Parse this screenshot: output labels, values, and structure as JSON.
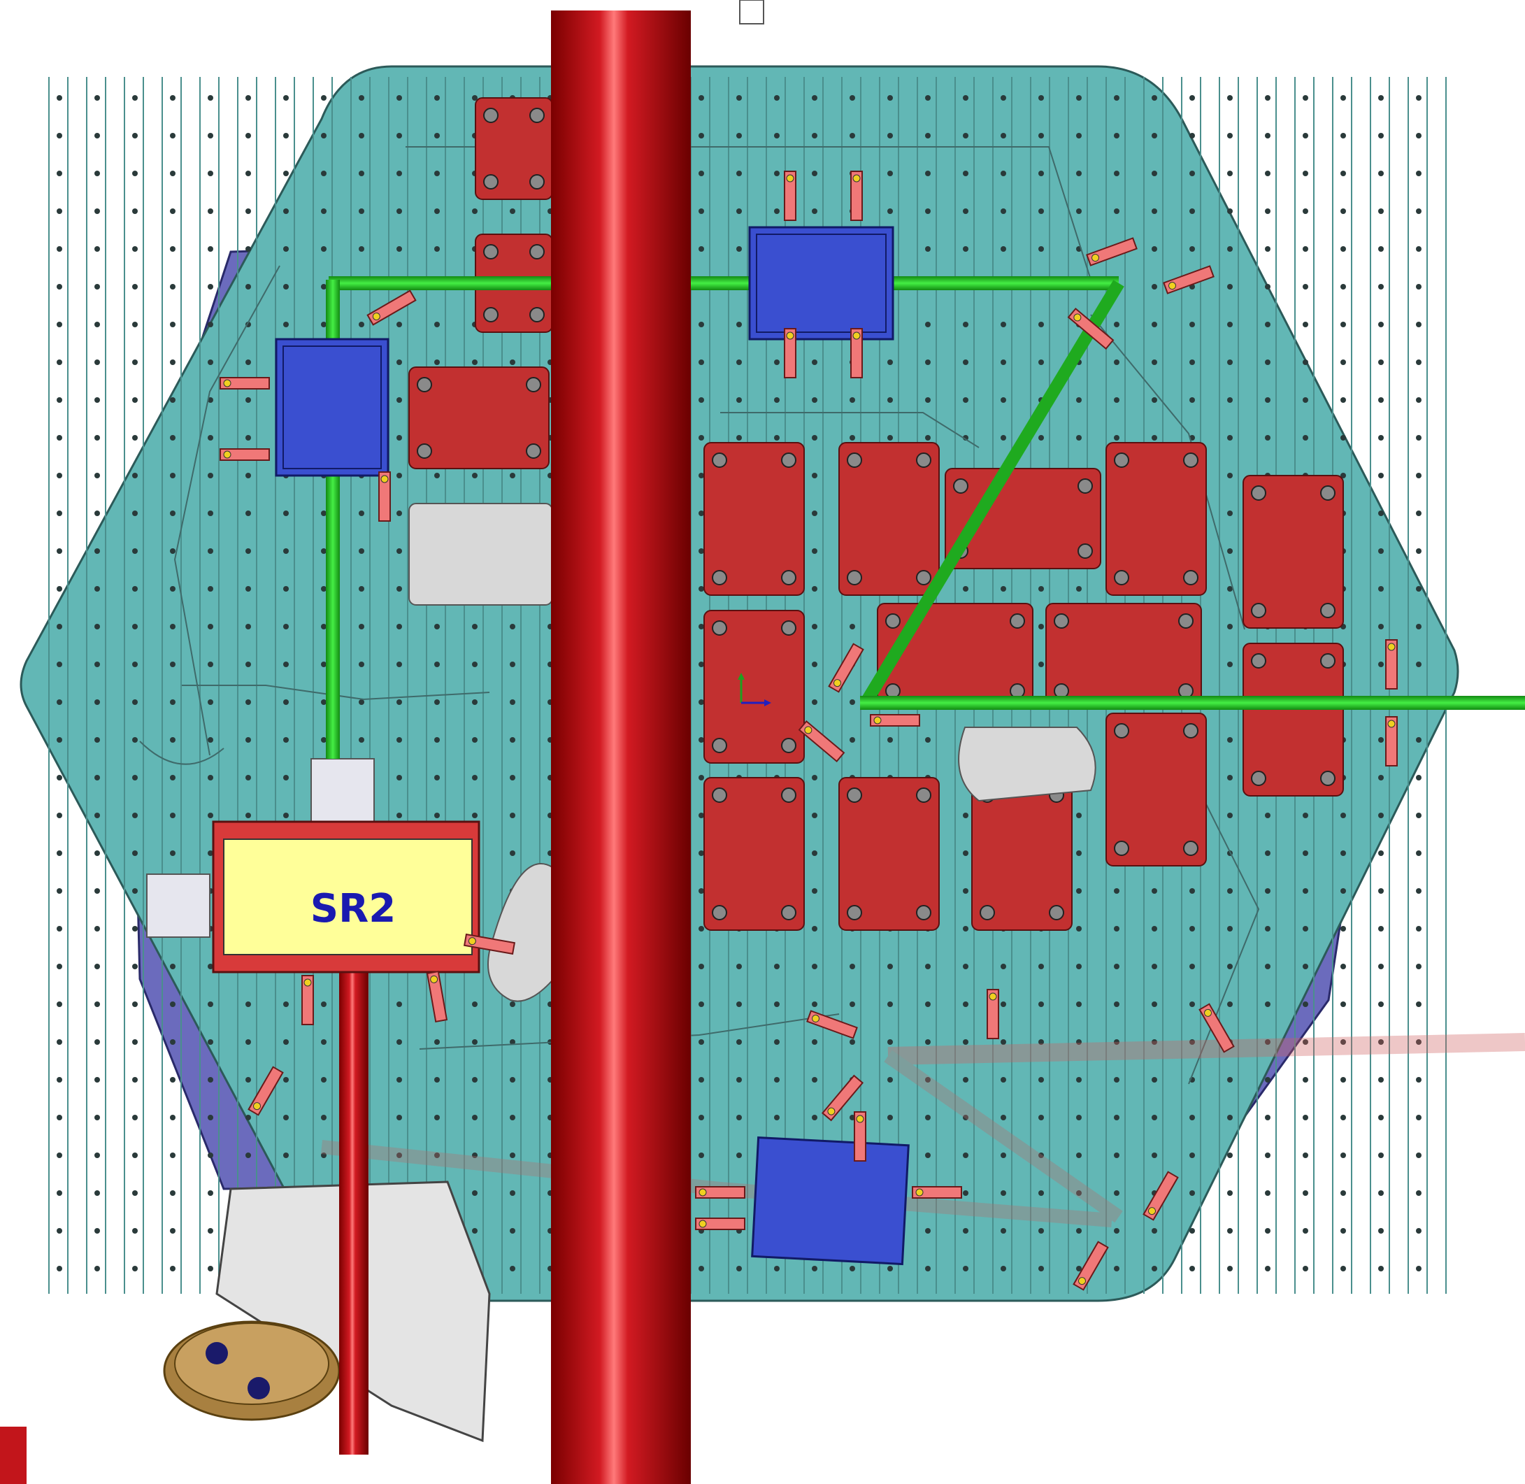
{
  "title_label": "SR2",
  "colors": {
    "background": "#ffffff",
    "table": "#62b7b5",
    "table_edge": "#2c5a59",
    "underplate": "#6b6bbd",
    "red_block": "#c23030",
    "red_block_edge": "#5a1010",
    "gray_block": "#d8d8d8",
    "blue_mount": "#3a4fd0",
    "green_beam": "#22cc22",
    "red_pipe": "#c2151b",
    "pink_clamp": "#f07878",
    "label_box": "#ffff99",
    "label_text": "#1a1ab0",
    "hole": "#2a3a3a"
  },
  "icons": {
    "coordinate_triad": "xyz-axes-icon"
  }
}
